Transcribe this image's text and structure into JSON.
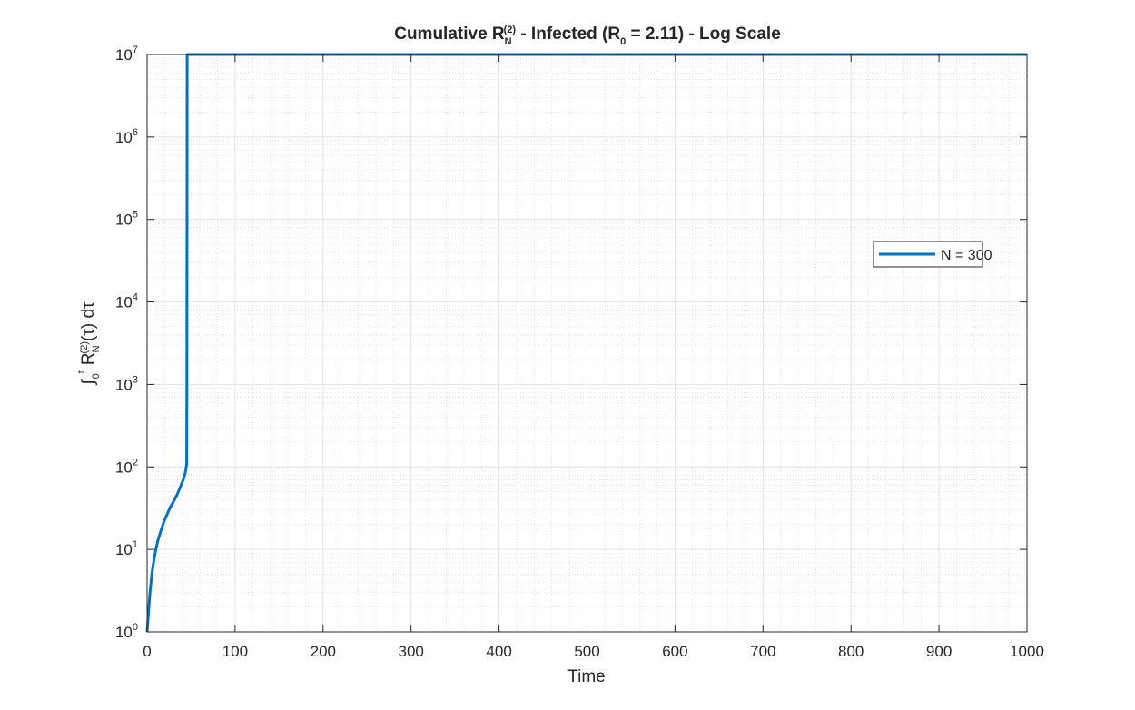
{
  "chart_data": {
    "type": "line",
    "title": "Cumulative R_N^(2) - Infected (R_0 = 2.11) - Log Scale",
    "title_parts": {
      "pre": "Cumulative  R",
      "sub1": "N",
      "sup1": "(2)",
      "mid": "  -  Infected  (R",
      "sub2": "0",
      "post": "  =  2.11)  -  Log  Scale"
    },
    "xlabel": "Time",
    "ylabel": "∫₀ᵗ R_N^(2)(τ) dτ",
    "ylabel_parts": {
      "integral": "∫",
      "lower": "0",
      "upper": "t",
      "R": "R",
      "sub": "N",
      "sup": "(2)",
      "post": "(τ)  dτ"
    },
    "xlim": [
      0,
      1000
    ],
    "ylim": [
      1,
      10000000
    ],
    "yscale": "log",
    "grid": true,
    "minor_grid": true,
    "legend_position": "right",
    "xticks": [
      0,
      100,
      200,
      300,
      400,
      500,
      600,
      700,
      800,
      900,
      1000
    ],
    "yticks": [
      {
        "value": 1,
        "base": "10",
        "exp": "0"
      },
      {
        "value": 10,
        "base": "10",
        "exp": "1"
      },
      {
        "value": 100,
        "base": "10",
        "exp": "2"
      },
      {
        "value": 1000,
        "base": "10",
        "exp": "3"
      },
      {
        "value": 10000,
        "base": "10",
        "exp": "4"
      },
      {
        "value": 100000,
        "base": "10",
        "exp": "5"
      },
      {
        "value": 1000000,
        "base": "10",
        "exp": "6"
      },
      {
        "value": 10000000,
        "base": "10",
        "exp": "7"
      }
    ],
    "series": [
      {
        "name": "N = 300",
        "color": "#0072BD",
        "x": [
          0,
          1,
          2,
          3,
          4,
          5,
          6,
          8,
          10,
          12,
          15,
          18,
          20,
          23,
          26,
          30,
          34,
          38,
          41,
          43,
          44,
          44.5,
          45,
          45.2,
          45.5,
          46,
          50,
          100,
          200,
          300,
          400,
          500,
          600,
          700,
          800,
          900,
          1000
        ],
        "y": [
          1,
          1.4,
          2.0,
          2.8,
          3.6,
          4.6,
          5.6,
          7.8,
          10,
          12.5,
          16,
          20,
          23,
          27,
          32,
          38,
          46,
          58,
          70,
          82,
          92,
          100,
          110,
          1000,
          10000000,
          10000000,
          10000000,
          10000000,
          10000000,
          10000000,
          10000000,
          10000000,
          10000000,
          10000000,
          10000000,
          10000000,
          10000000
        ]
      }
    ]
  }
}
